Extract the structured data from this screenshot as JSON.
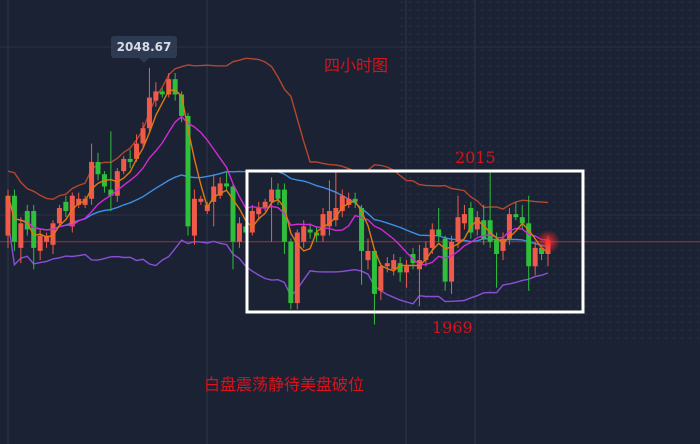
{
  "chart_data": {
    "type": "candlestick",
    "timeframe_label": "四小时图",
    "peak_label": "2048.67",
    "range_high_label": "2015",
    "range_low_label": "1969",
    "comment": "白盘震荡静待美盘破位",
    "current_price_line": 1992,
    "ylim": [
      1952,
      2070
    ],
    "grid": true,
    "overlays": [
      "moving averages",
      "bollinger bands"
    ],
    "colors": {
      "up": "#f05a4a",
      "down": "#2fbf3c",
      "upper_band": "#b5462f",
      "lower_band": "#8a4fd6",
      "mid_band": "#d22ad6",
      "fast_ma": "#e07a10",
      "slow_ma": "#3d8fe6",
      "annotation": "#d8141c",
      "box": "#ffffff"
    },
    "candles_ohlc": [
      [
        1994,
        2009,
        1990,
        2007
      ],
      [
        2007,
        2009,
        1989,
        1992
      ],
      [
        1990,
        2000,
        1985,
        1998
      ],
      [
        2002,
        2004,
        1994,
        1996
      ],
      [
        2002,
        2004,
        1983,
        1990
      ],
      [
        1989,
        1996,
        1986,
        1994
      ],
      [
        1992,
        1995,
        1990,
        1994
      ],
      [
        1991,
        1999,
        1988,
        1998
      ],
      [
        1998,
        2004,
        1997,
        2003
      ],
      [
        2005,
        2007,
        2000,
        2002
      ],
      [
        1997,
        2008,
        1995,
        2007
      ],
      [
        2004,
        2008,
        2003,
        2006
      ],
      [
        2004,
        2007,
        2003,
        2006
      ],
      [
        2006,
        2024,
        2004,
        2018
      ],
      [
        2018,
        2021,
        2012,
        2014
      ],
      [
        2014,
        2015,
        2008,
        2010
      ],
      [
        2009,
        2028,
        2002,
        2007
      ],
      [
        2007,
        2016,
        2005,
        2015
      ],
      [
        2015,
        2020,
        2014,
        2019
      ],
      [
        2019,
        2022,
        2016,
        2018
      ],
      [
        2019,
        2027,
        2018,
        2024
      ],
      [
        2024,
        2031,
        2023,
        2029
      ],
      [
        2029,
        2048.67,
        2028,
        2039
      ],
      [
        2038,
        2044,
        2036,
        2041
      ],
      [
        2041,
        2042,
        2039,
        2040
      ],
      [
        2040,
        2047,
        2039,
        2045
      ],
      [
        2045,
        2047,
        2038,
        2040
      ],
      [
        2040,
        2041,
        2031,
        2033
      ],
      [
        2033,
        2034,
        1994,
        1997
      ],
      [
        1994,
        2009,
        1991,
        2006
      ],
      [
        2005,
        2007,
        2004,
        2006
      ],
      [
        2002,
        2005,
        2001,
        2004
      ],
      [
        2005,
        2014,
        1997,
        2010
      ],
      [
        2007,
        2013,
        2006,
        2011
      ],
      [
        2011,
        2015,
        2009,
        2010
      ],
      [
        2010,
        2011,
        1983,
        1992
      ],
      [
        1992,
        2000,
        1990,
        1998
      ],
      [
        1997,
        1998,
        1994,
        1995
      ],
      [
        1995,
        2004,
        1994,
        2002
      ],
      [
        2001,
        2005,
        1999,
        2003
      ],
      [
        2003,
        2006,
        2002,
        2005
      ],
      [
        2005,
        2013,
        1992,
        2009
      ],
      [
        2009,
        2011,
        2004,
        2006
      ],
      [
        2009,
        2011,
        1988,
        1992
      ],
      [
        1992,
        1993,
        1970,
        1972
      ],
      [
        1972,
        1996,
        1970,
        1995
      ],
      [
        1992,
        1999,
        1990,
        1997
      ],
      [
        1996,
        1998,
        1993,
        1995
      ],
      [
        1995,
        1997,
        1992,
        1994
      ],
      [
        1994,
        2003,
        1992,
        2001
      ],
      [
        1997,
        2012,
        1994,
        2002
      ],
      [
        1999,
        2015,
        1997,
        2003
      ],
      [
        2002,
        2009,
        2000,
        2007
      ],
      [
        2004,
        2008,
        2003,
        2006
      ],
      [
        2006,
        2008,
        2003,
        2005
      ],
      [
        2003,
        2004,
        1978,
        1989
      ],
      [
        1986,
        1993,
        1983,
        1989
      ],
      [
        1989,
        1990,
        1965,
        1975
      ],
      [
        1976,
        1985,
        1973,
        1984
      ],
      [
        1984,
        1987,
        1982,
        1985
      ],
      [
        1983,
        1988,
        1981,
        1986
      ],
      [
        1985,
        1987,
        1979,
        1982
      ],
      [
        1982,
        1986,
        1977,
        1984
      ],
      [
        1988,
        1990,
        1983,
        1985
      ],
      [
        1983,
        1991,
        1971,
        1986
      ],
      [
        1986,
        1992,
        1984,
        1990
      ],
      [
        1990,
        1998,
        1988,
        1996
      ],
      [
        1996,
        2003,
        1992,
        1994
      ],
      [
        1993,
        1994,
        1976,
        1979
      ],
      [
        1979,
        1994,
        1975,
        1992
      ],
      [
        1992,
        2007,
        1990,
        2000
      ],
      [
        1998,
        2004,
        1996,
        2001
      ],
      [
        2003,
        2005,
        1993,
        1995
      ],
      [
        1996,
        2002,
        1994,
        2000
      ],
      [
        1999,
        2004,
        1991,
        1993
      ],
      [
        1999,
        2015,
        1990,
        1992
      ],
      [
        1993,
        1995,
        1977,
        1988
      ],
      [
        1989,
        1995,
        1986,
        1993
      ],
      [
        1993,
        2003,
        1991,
        2001
      ],
      [
        2001,
        2005,
        1999,
        2000
      ],
      [
        2000,
        2004,
        1996,
        1998
      ],
      [
        1998,
        2007,
        1976,
        1984
      ],
      [
        1984,
        1992,
        1981,
        1990
      ],
      [
        1990,
        1991,
        1986,
        1988
      ],
      [
        1988,
        1994,
        1984,
        1992
      ]
    ]
  }
}
